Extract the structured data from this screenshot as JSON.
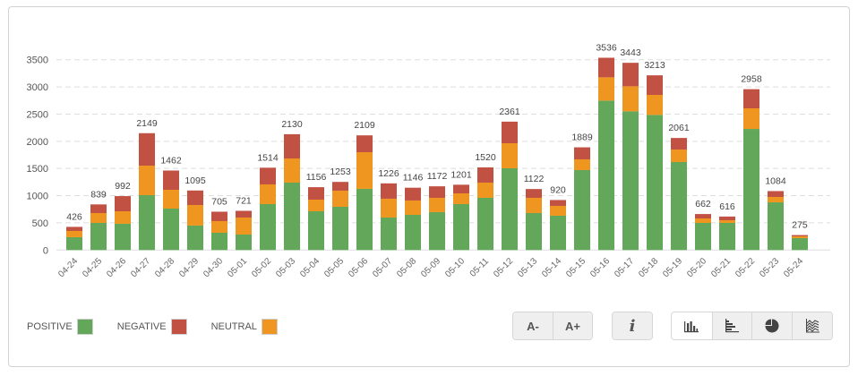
{
  "chart_data": {
    "type": "bar",
    "stacked": true,
    "title": "",
    "xlabel": "",
    "ylabel": "",
    "ylim": [
      0,
      3500
    ],
    "yticks": [
      0,
      500,
      1000,
      1500,
      2000,
      2500,
      3000,
      3500
    ],
    "grid": true,
    "categories": [
      "04-24",
      "04-25",
      "04-26",
      "04-27",
      "04-28",
      "04-29",
      "04-30",
      "05-01",
      "05-02",
      "05-03",
      "05-04",
      "05-05",
      "05-06",
      "05-07",
      "05-08",
      "05-09",
      "05-10",
      "05-11",
      "05-12",
      "05-13",
      "05-14",
      "05-15",
      "05-16",
      "05-17",
      "05-18",
      "05-19",
      "05-20",
      "05-21",
      "05-22",
      "05-23",
      "05-24"
    ],
    "totals": [
      426,
      839,
      992,
      2149,
      1462,
      1095,
      705,
      721,
      1514,
      2130,
      1156,
      1253,
      2109,
      1226,
      1146,
      1172,
      1201,
      1520,
      2361,
      1122,
      920,
      1889,
      3536,
      3443,
      3213,
      2061,
      662,
      616,
      2958,
      1084,
      275
    ],
    "series": [
      {
        "name": "POSITIVE",
        "color": "#62a75a",
        "values": [
          236,
          499,
          483,
          1009,
          762,
          450,
          318,
          285,
          845,
          1240,
          713,
          795,
          1125,
          598,
          647,
          697,
          845,
          960,
          1503,
          680,
          631,
          1470,
          2748,
          2551,
          2485,
          1618,
          499,
          499,
          2227,
          877,
          219
        ]
      },
      {
        "name": "NEUTRAL",
        "color": "#ee961f",
        "values": [
          115,
          181,
          230,
          543,
          346,
          378,
          214,
          313,
          362,
          444,
          214,
          297,
          674,
          346,
          264,
          263,
          197,
          280,
          461,
          280,
          181,
          198,
          428,
          460,
          368,
          230,
          82,
          49,
          379,
          99,
          33
        ]
      },
      {
        "name": "NEGATIVE",
        "color": "#c15143",
        "values": [
          75,
          159,
          279,
          597,
          354,
          267,
          173,
          123,
          307,
          446,
          229,
          161,
          310,
          282,
          235,
          212,
          159,
          280,
          397,
          162,
          108,
          221,
          360,
          432,
          360,
          213,
          81,
          68,
          352,
          108,
          23
        ]
      }
    ],
    "legend": {
      "position": "bottom-left",
      "items": [
        {
          "label": "POSITIVE",
          "color": "#62a75a"
        },
        {
          "label": "NEGATIVE",
          "color": "#c15143"
        },
        {
          "label": "NEUTRAL",
          "color": "#ee961f"
        }
      ]
    }
  },
  "controls": {
    "font_decrease": "A-",
    "font_increase": "A+",
    "info": "i",
    "chart_types": [
      {
        "icon": "bar-chart-icon",
        "active": true
      },
      {
        "icon": "horizontal-bar-chart-icon",
        "active": false
      },
      {
        "icon": "pie-chart-icon",
        "active": false
      },
      {
        "icon": "area-chart-icon",
        "active": false
      }
    ]
  }
}
